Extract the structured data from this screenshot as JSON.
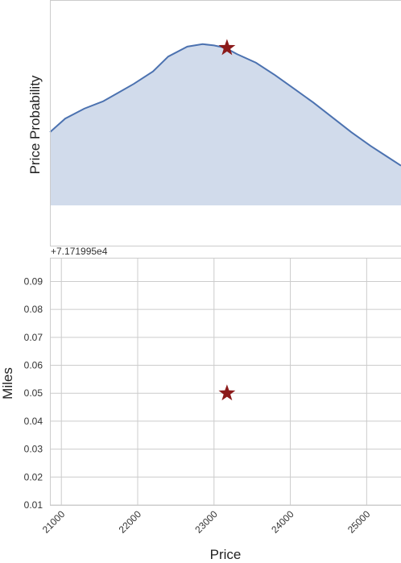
{
  "chart_data": [
    {
      "type": "area",
      "panel": "top",
      "ylabel": "Price Probability",
      "xlabel": "",
      "xlim": [
        20850,
        25450
      ],
      "grid": false,
      "series": [
        {
          "color": "#4c72b0",
          "fill_color": "#d1dbeb",
          "x": [
            20850,
            21050,
            21300,
            21550,
            21750,
            21950,
            22200,
            22400,
            22650,
            22850,
            23000,
            23150,
            23300,
            23550,
            23800,
            24050,
            24300,
            24550,
            24800,
            25050,
            25250,
            25450
          ],
          "y": [
            0.59,
            0.7,
            0.78,
            0.84,
            0.91,
            0.98,
            1.08,
            1.2,
            1.28,
            1.3,
            1.29,
            1.27,
            1.22,
            1.15,
            1.05,
            0.94,
            0.83,
            0.71,
            0.59,
            0.48,
            0.4,
            0.32
          ]
        }
      ],
      "marker": {
        "x": 23170,
        "y": 1.27,
        "symbol": "star",
        "color": "#8b1a1a"
      }
    },
    {
      "type": "scatter",
      "panel": "bottom",
      "xlabel": "Price",
      "ylabel": "Miles",
      "xlim": [
        20850,
        25450
      ],
      "ylim": [
        0.01,
        0.0985
      ],
      "grid": true,
      "x_ticks": [
        21000,
        22000,
        23000,
        24000,
        25000
      ],
      "x_tick_labels": [
        "21000",
        "22000",
        "23000",
        "24000",
        "25000"
      ],
      "y_ticks": [
        0.01,
        0.02,
        0.03,
        0.04,
        0.05,
        0.06,
        0.07,
        0.08,
        0.09
      ],
      "y_tick_labels": [
        "0.01",
        "0.02",
        "0.03",
        "0.04",
        "0.05",
        "0.06",
        "0.07",
        "0.08",
        "0.09"
      ],
      "y_offset_text": "+7.171995e4",
      "points": [
        {
          "x": 23170,
          "y": 0.05,
          "symbol": "star",
          "color": "#8b1a1a"
        }
      ]
    }
  ]
}
